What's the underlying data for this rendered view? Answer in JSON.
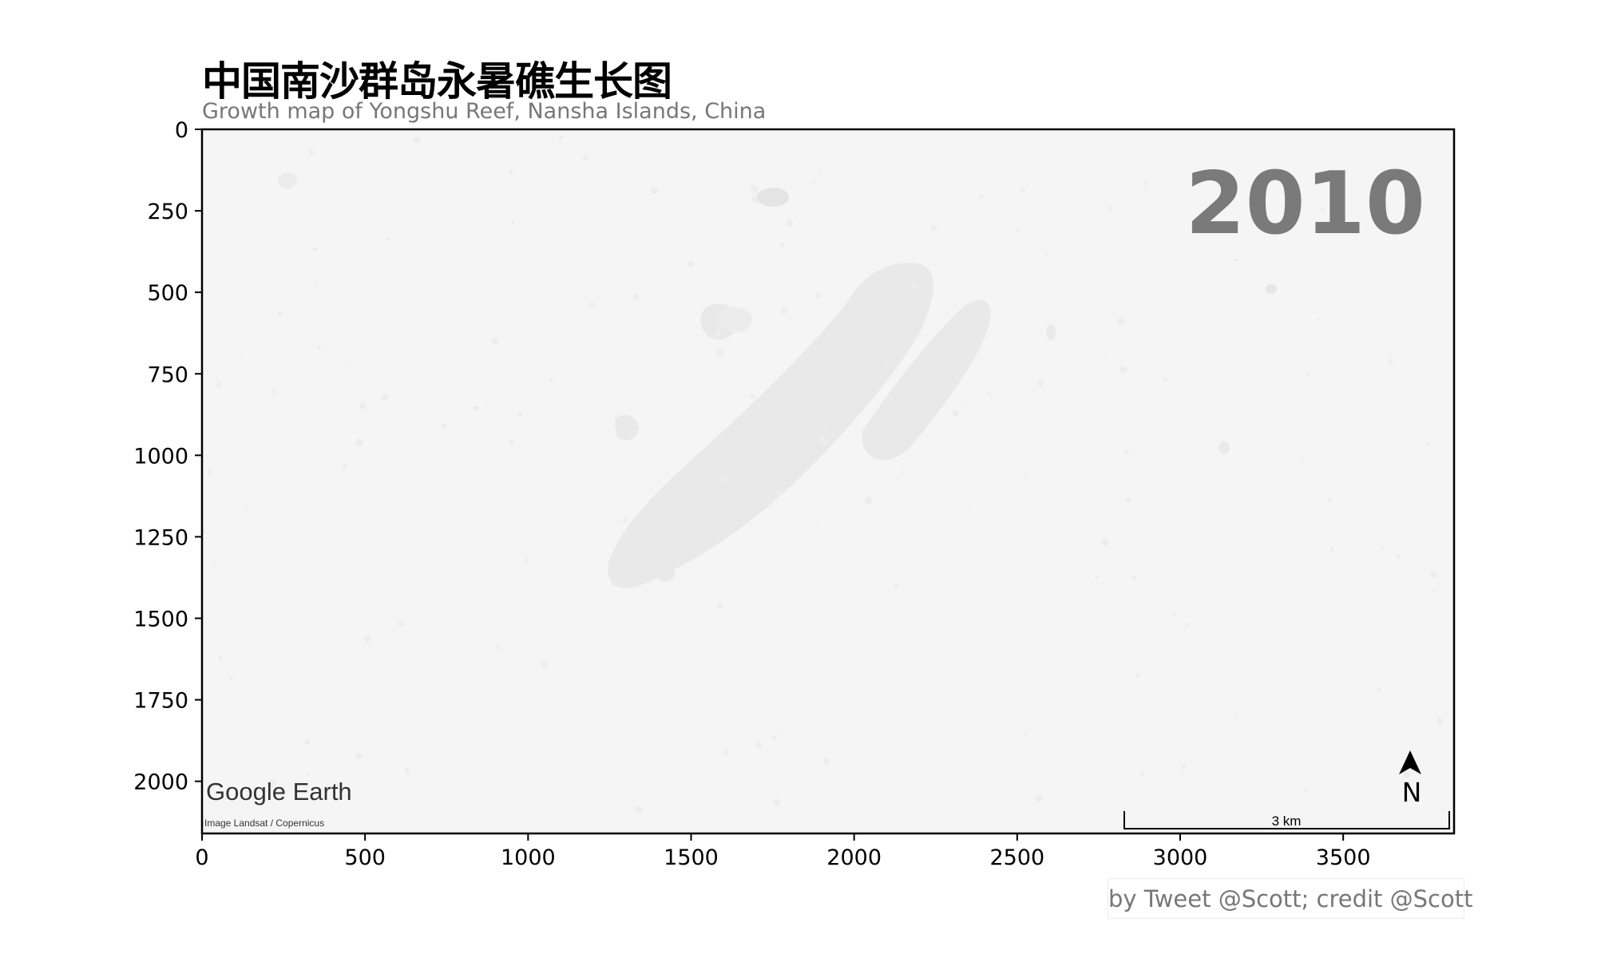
{
  "title": "中国南沙群岛永暑礁生长图",
  "subtitle": "Growth map of Yongshu Reef, Nansha Islands, China",
  "credit": "by Tweet @Scott; credit @Scott",
  "chart_data": {
    "type": "image",
    "year_label": "2010",
    "xlim": [
      0,
      3840
    ],
    "ylim": [
      2160,
      0
    ],
    "x_ticks": [
      0,
      500,
      1000,
      1500,
      2000,
      2500,
      3000,
      3500
    ],
    "y_ticks": [
      0,
      250,
      500,
      750,
      1000,
      1250,
      1500,
      1750,
      2000
    ],
    "watermark": "Google Earth",
    "image_credit": "Image Landsat / Copernicus",
    "scale_label": "3 km",
    "north_label": "N",
    "colors": {
      "background": "#f5f5f5",
      "reef": "#e9e9e9",
      "year": "#7a7a7a",
      "axis": "#000000"
    }
  }
}
